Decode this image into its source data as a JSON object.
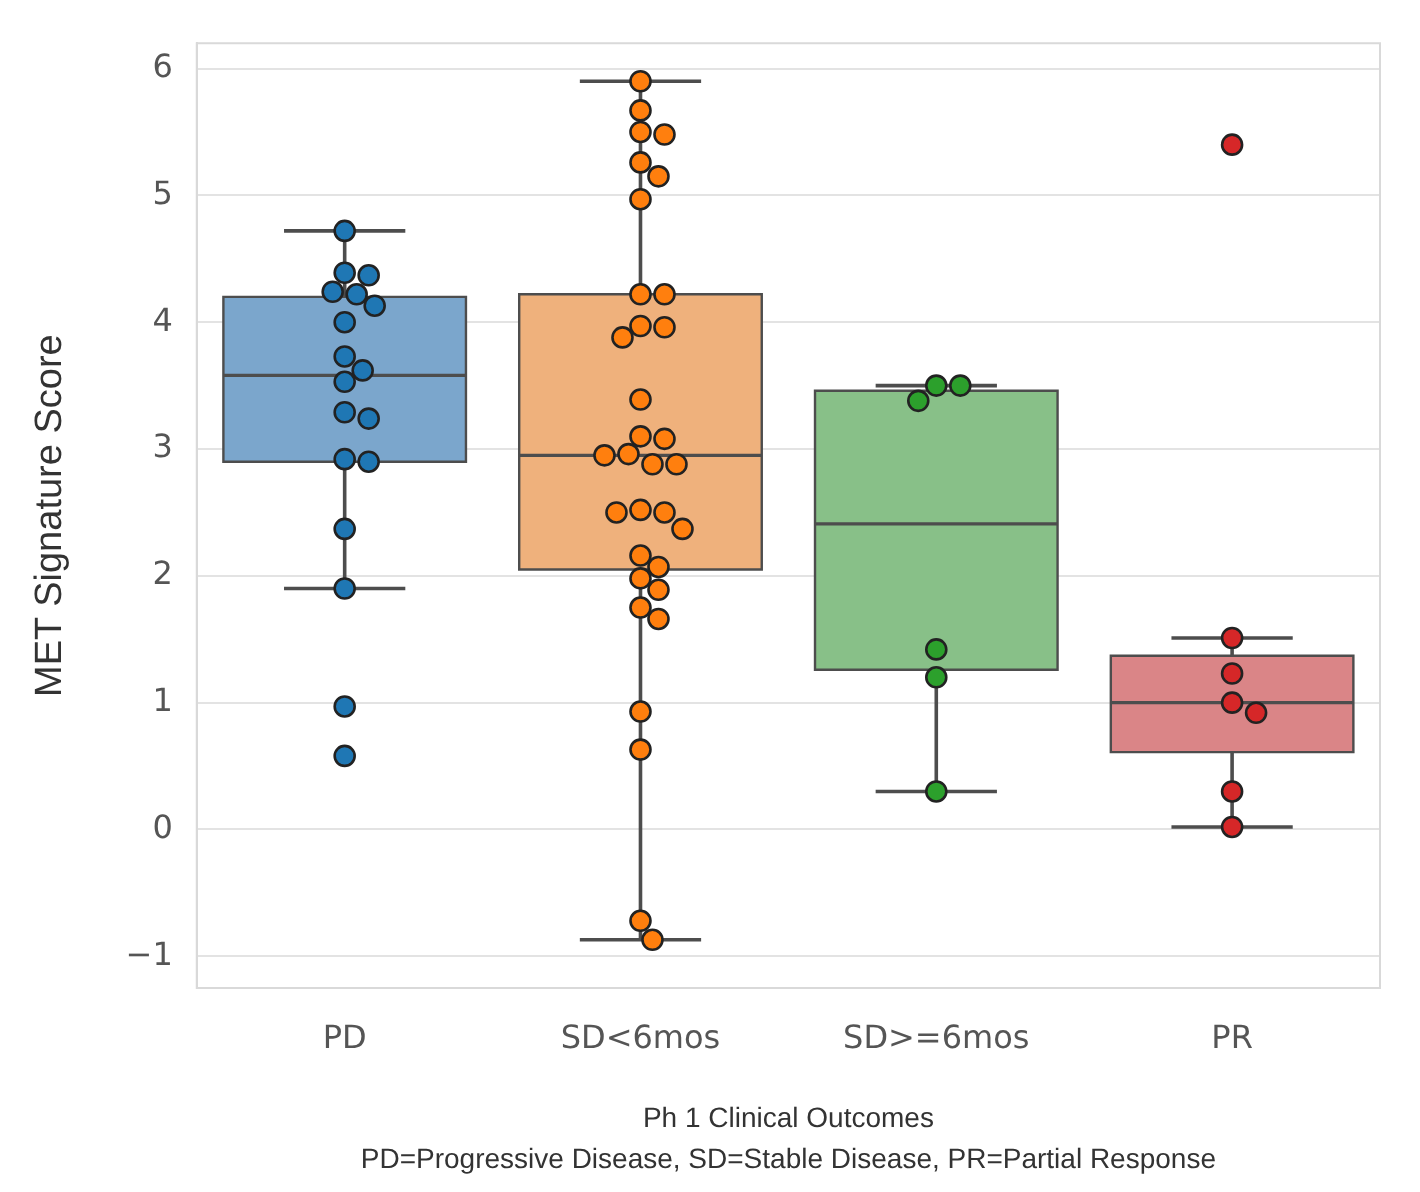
{
  "chart_data": {
    "type": "box",
    "categories": [
      "PD",
      "SD<6mos",
      "SD>=6mos",
      "PR"
    ],
    "ylabel": "MET Signature Score",
    "xlabel": "Ph 1 Clinical Outcomes",
    "annotations": [
      "PD=Progressive Disease, SD=Stable Disease, PR=Partial Response"
    ],
    "ylim": [
      -1.25,
      6.2
    ],
    "yticks": [
      -1,
      0,
      1,
      2,
      3,
      4,
      5,
      6
    ],
    "grid": "y",
    "legend": false,
    "series": [
      {
        "type": "box",
        "colors": [
          "#7ba6cc",
          "#efb17c",
          "#88c088",
          "#da8587"
        ],
        "boxes": [
          {
            "low": 1.9,
            "q1": 2.9,
            "median": 3.58,
            "q3": 4.2,
            "high": 4.72
          },
          {
            "low": -0.87,
            "q1": 2.05,
            "median": 2.95,
            "q3": 4.22,
            "high": 5.9
          },
          {
            "low": 0.3,
            "q1": 1.26,
            "median": 2.41,
            "q3": 3.46,
            "high": 3.5
          },
          {
            "low": 0.02,
            "q1": 0.61,
            "median": 1.0,
            "q3": 1.37,
            "high": 1.51
          }
        ]
      },
      {
        "type": "scatter",
        "marker": "circle",
        "x": [
          "PD",
          "PD",
          "PD",
          "PD",
          "PD",
          "PD",
          "PD",
          "PD",
          "PD",
          "PD",
          "PD",
          "PD",
          "PD",
          "PD",
          "PD",
          "PD",
          "PD",
          "PD",
          "SD<6mos",
          "SD<6mos",
          "SD<6mos",
          "SD<6mos",
          "SD<6mos",
          "SD<6mos",
          "SD<6mos",
          "SD<6mos",
          "SD<6mos",
          "SD<6mos",
          "SD<6mos",
          "SD<6mos",
          "SD<6mos",
          "SD<6mos",
          "SD<6mos",
          "SD<6mos",
          "SD<6mos",
          "SD<6mos",
          "SD<6mos",
          "SD<6mos",
          "SD<6mos",
          "SD<6mos",
          "SD<6mos",
          "SD<6mos",
          "SD<6mos",
          "SD<6mos",
          "SD<6mos",
          "SD<6mos",
          "SD<6mos",
          "SD<6mos",
          "SD<6mos",
          "SD<6mos",
          "SD<6mos",
          "SD>=6mos",
          "SD>=6mos",
          "SD>=6mos",
          "SD>=6mos",
          "SD>=6mos",
          "SD>=6mos",
          "PR",
          "PR",
          "PR",
          "PR",
          "PR",
          "PR",
          "PR"
        ],
        "values": [
          4.72,
          4.39,
          4.37,
          4.24,
          4.22,
          4.13,
          4.0,
          3.73,
          3.62,
          3.53,
          3.29,
          3.24,
          2.92,
          2.9,
          2.37,
          1.9,
          0.97,
          0.58,
          5.9,
          5.67,
          5.5,
          5.48,
          5.26,
          5.15,
          4.97,
          4.22,
          4.22,
          3.97,
          3.96,
          3.88,
          3.39,
          3.1,
          3.08,
          2.96,
          2.95,
          2.88,
          2.88,
          2.5,
          2.5,
          2.52,
          2.37,
          2.16,
          2.07,
          1.98,
          1.89,
          1.75,
          1.66,
          0.93,
          0.63,
          -0.72,
          -0.87,
          3.5,
          3.5,
          3.38,
          1.42,
          1.2,
          0.3,
          5.4,
          1.51,
          1.23,
          1.0,
          0.92,
          0.3,
          0.02
        ],
        "colors": [
          "#1f77b4",
          "#1f77b4",
          "#1f77b4",
          "#1f77b4",
          "#1f77b4",
          "#1f77b4",
          "#1f77b4",
          "#1f77b4",
          "#1f77b4",
          "#1f77b4",
          "#1f77b4",
          "#1f77b4",
          "#1f77b4",
          "#1f77b4",
          "#1f77b4",
          "#1f77b4",
          "#1f77b4",
          "#1f77b4",
          "#ff7f0e",
          "#ff7f0e",
          "#ff7f0e",
          "#ff7f0e",
          "#ff7f0e",
          "#ff7f0e",
          "#ff7f0e",
          "#ff7f0e",
          "#ff7f0e",
          "#ff7f0e",
          "#ff7f0e",
          "#ff7f0e",
          "#ff7f0e",
          "#ff7f0e",
          "#ff7f0e",
          "#ff7f0e",
          "#ff7f0e",
          "#ff7f0e",
          "#ff7f0e",
          "#ff7f0e",
          "#ff7f0e",
          "#ff7f0e",
          "#ff7f0e",
          "#ff7f0e",
          "#ff7f0e",
          "#ff7f0e",
          "#ff7f0e",
          "#ff7f0e",
          "#ff7f0e",
          "#ff7f0e",
          "#ff7f0e",
          "#ff7f0e",
          "#ff7f0e",
          "#2ca02c",
          "#2ca02c",
          "#2ca02c",
          "#2ca02c",
          "#2ca02c",
          "#2ca02c",
          "#d62728",
          "#d62728",
          "#d62728",
          "#d62728",
          "#d62728",
          "#d62728",
          "#d62728"
        ]
      }
    ]
  }
}
